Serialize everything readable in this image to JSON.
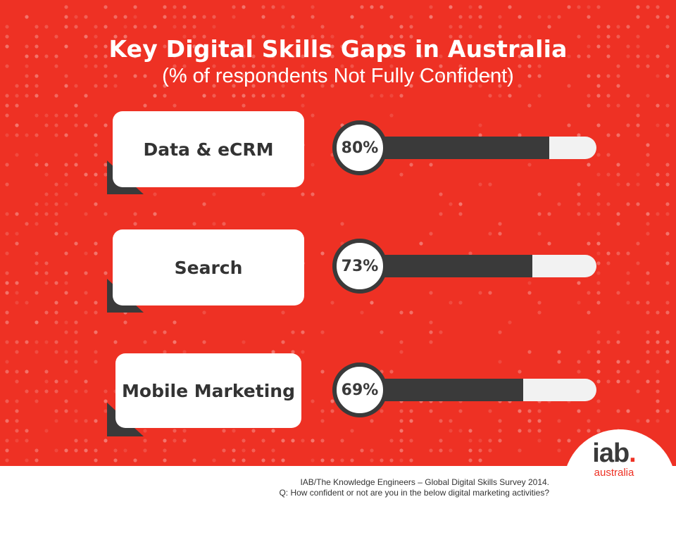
{
  "title": "Key Digital Skills Gaps in Australia",
  "subtitle": "(% of respondents Not Fully Confident)",
  "chart_data": {
    "type": "bar",
    "title": "Key Digital Skills Gaps in Australia",
    "subtitle": "(% of respondents Not Fully Confident)",
    "orientation": "horizontal",
    "categories": [
      "Data & eCRM",
      "Search",
      "Mobile Marketing"
    ],
    "values": [
      80,
      73,
      69
    ],
    "value_labels": [
      "80%",
      "73%",
      "69%"
    ],
    "xlim": [
      0,
      100
    ],
    "grid": false
  },
  "source": {
    "line1": "IAB/The Knowledge Engineers – Global Digital Skills  Survey 2014.",
    "line2": "Q: How confident or not are you in the below digital marketing activities?"
  },
  "logo": {
    "main": "iab",
    "dot": ".",
    "sub": "australia"
  },
  "colors": {
    "background": "#ee3124",
    "bar_fill": "#3a3a3a",
    "bar_track": "#f2f2f2",
    "label_box": "#ffffff",
    "text_dark": "#333333"
  }
}
